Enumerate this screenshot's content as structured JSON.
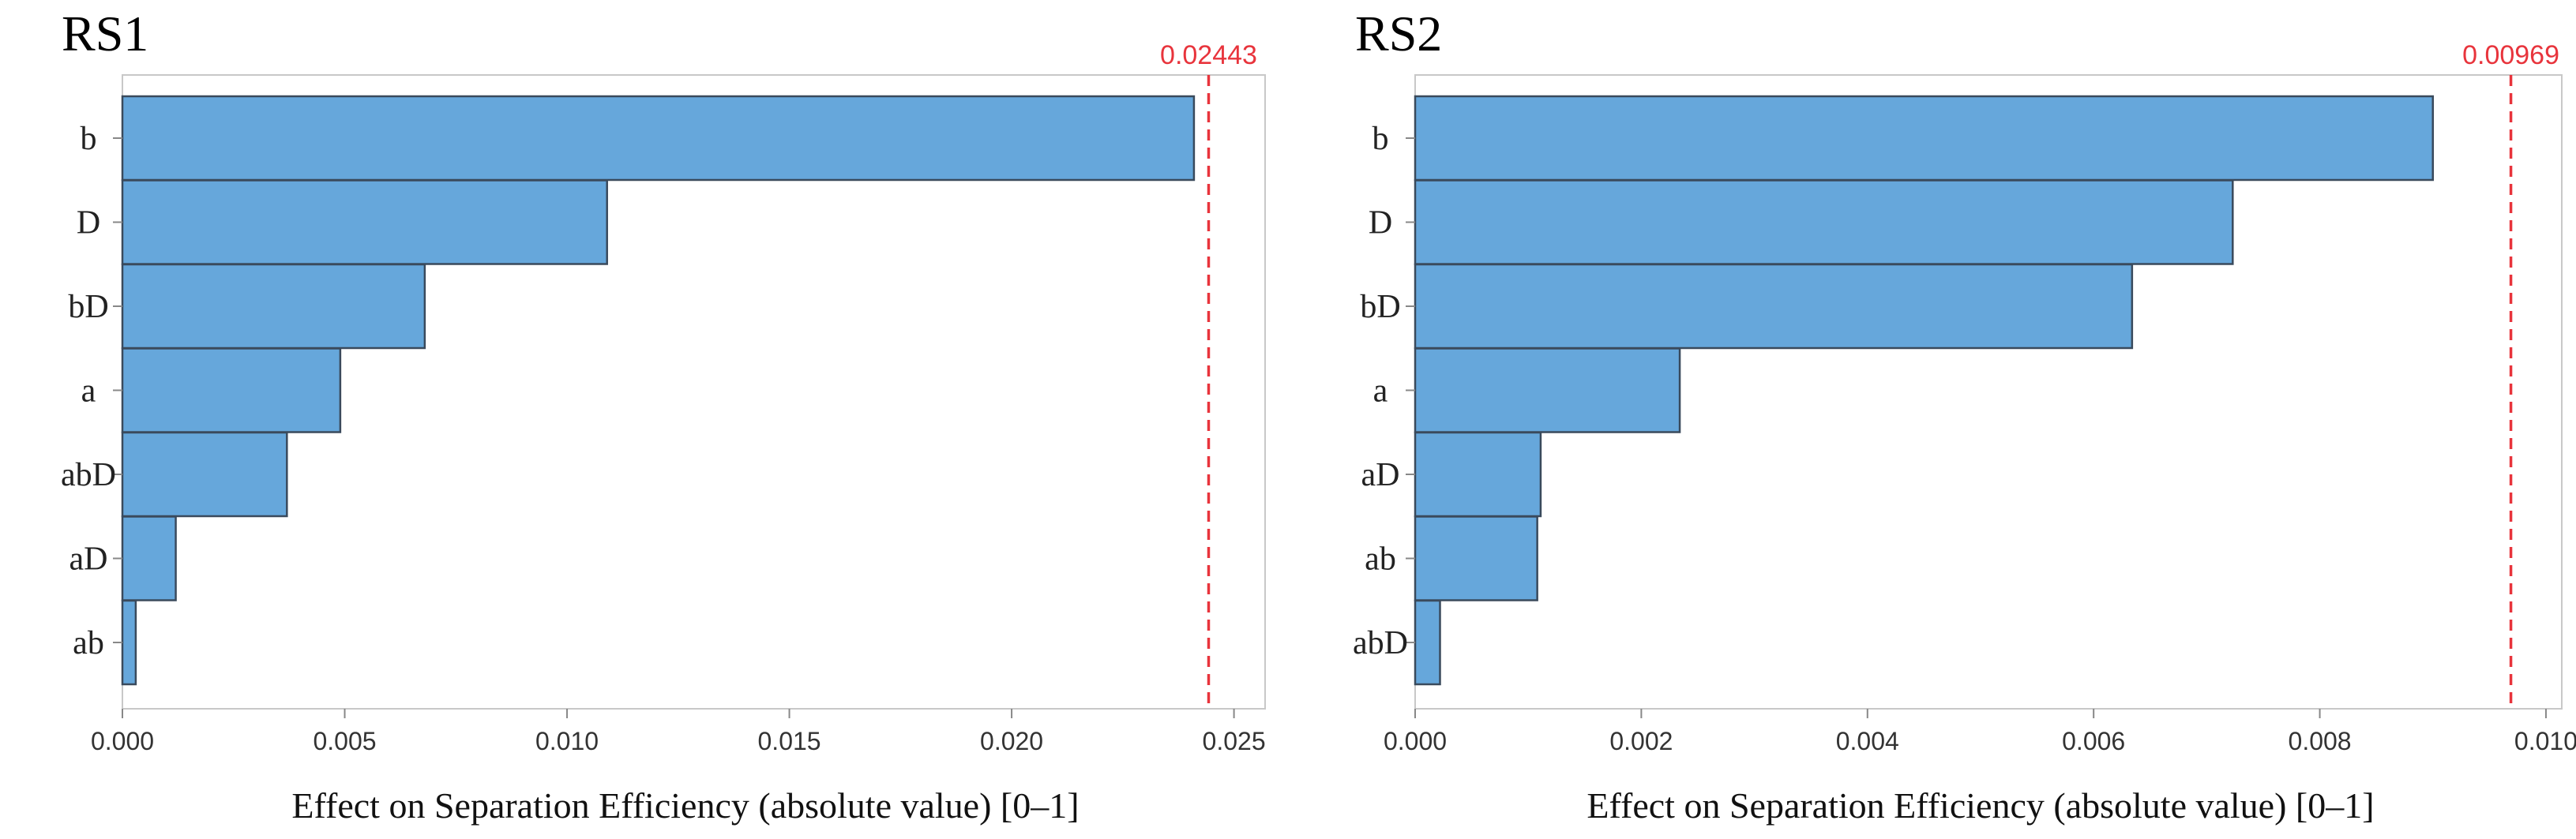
{
  "chart_data": [
    {
      "type": "bar",
      "orientation": "horizontal",
      "title": "RS1",
      "xlabel": "Effect on Separation Efficiency (absolute value) [0–1]",
      "categories": [
        "b",
        "D",
        "bD",
        "a",
        "abD",
        "aD",
        "ab"
      ],
      "values": [
        0.0241,
        0.0109,
        0.0068,
        0.0049,
        0.0037,
        0.0012,
        0.0003
      ],
      "xlim": [
        0,
        0.0257
      ],
      "xticks": [
        0.0,
        0.005,
        0.01,
        0.015,
        0.02,
        0.025
      ],
      "xtick_labels": [
        "0.000",
        "0.005",
        "0.010",
        "0.015",
        "0.020",
        "0.025"
      ],
      "reference_line": {
        "value": 0.02443,
        "label": "0.02443"
      },
      "grid": false
    },
    {
      "type": "bar",
      "orientation": "horizontal",
      "title": "RS2",
      "xlabel": "Effect on Separation Efficiency (absolute value) [0–1]",
      "categories": [
        "b",
        "D",
        "bD",
        "a",
        "aD",
        "ab",
        "abD"
      ],
      "values": [
        0.009,
        0.00723,
        0.00634,
        0.00234,
        0.00111,
        0.00108,
        0.00022
      ],
      "xlim": [
        0,
        0.01014
      ],
      "xticks": [
        0.0,
        0.002,
        0.004,
        0.006,
        0.008,
        0.01
      ],
      "xtick_labels": [
        "0.000",
        "0.002",
        "0.004",
        "0.006",
        "0.008",
        "0.010"
      ],
      "reference_line": {
        "value": 0.00969,
        "label": "0.00969"
      },
      "grid": false
    }
  ],
  "colors": {
    "bar_fill": "#66a7db",
    "bar_stroke": "#3a4a5c",
    "reference_line": "#e8343c",
    "frame": "#c8c8c8"
  }
}
